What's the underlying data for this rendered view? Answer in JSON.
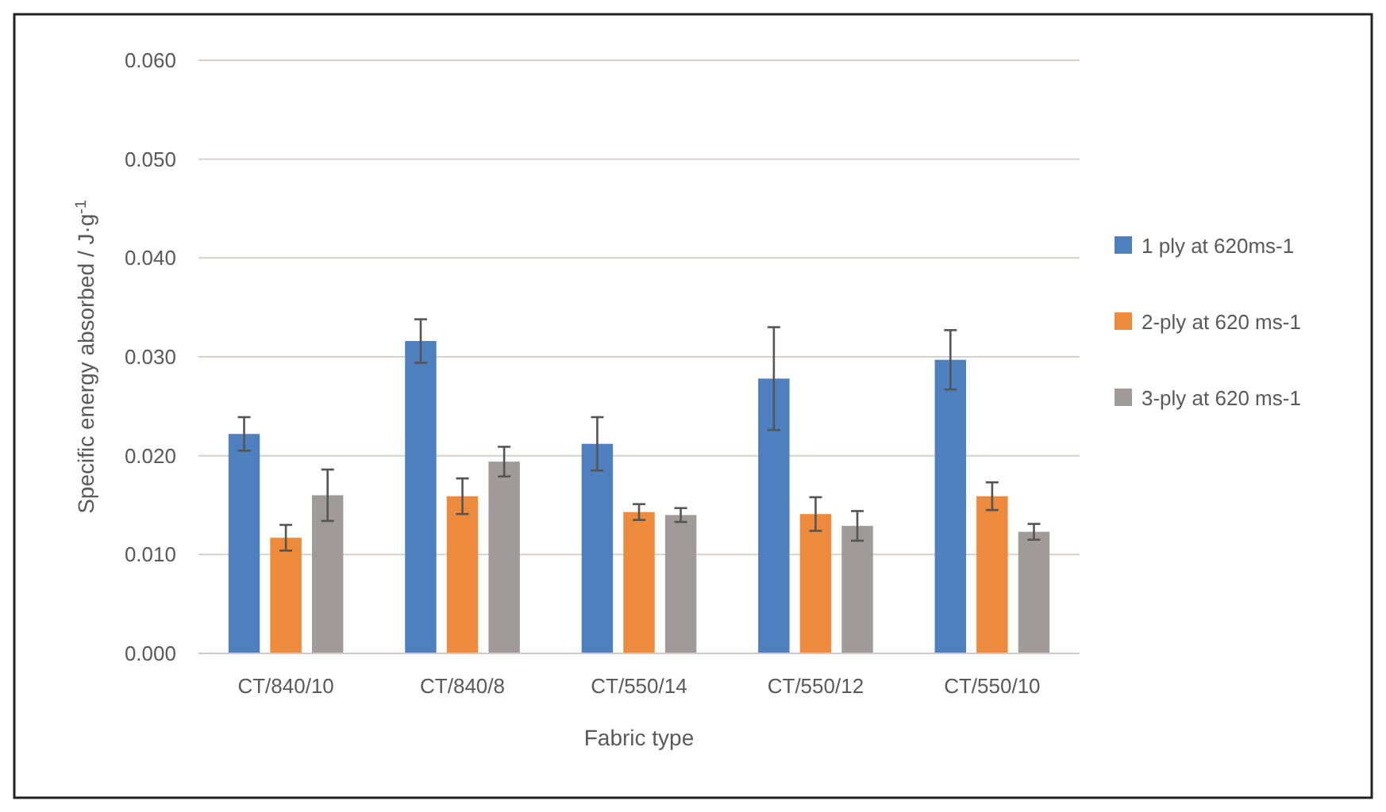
{
  "chart_data": {
    "type": "bar",
    "xlabel": "Fabric type",
    "ylabel": "Specific energy absorbed / J·g$^{-1}$",
    "categories": [
      "CT/840/10",
      "CT/840/8",
      "CT/550/14",
      "CT/550/12",
      "CT/550/10"
    ],
    "series": [
      {
        "name": "1 ply at 620ms-1",
        "color": "#4e7fbf",
        "values": [
          0.0222,
          0.0316,
          0.0212,
          0.0278,
          0.0297
        ],
        "errors": [
          0.0017,
          0.0022,
          0.0027,
          0.0052,
          0.003
        ]
      },
      {
        "name": "2-ply at 620 ms-1",
        "color": "#ed8a3b",
        "values": [
          0.0117,
          0.0159,
          0.0143,
          0.0141,
          0.0159
        ],
        "errors": [
          0.0013,
          0.0018,
          0.0008,
          0.0017,
          0.0014
        ]
      },
      {
        "name": "3-ply at 620 ms-1",
        "color": "#a09a9a",
        "values": [
          0.016,
          0.0194,
          0.014,
          0.0129,
          0.0123
        ],
        "errors": [
          0.0026,
          0.0015,
          0.0007,
          0.0015,
          0.0008
        ]
      }
    ],
    "ylim": [
      0,
      0.06
    ],
    "yticks": [
      {
        "value": 0,
        "label": "0.000"
      },
      {
        "value": 0.01,
        "label": "0.010"
      },
      {
        "value": 0.02,
        "label": "0.020"
      },
      {
        "value": 0.03,
        "label": "0.030"
      },
      {
        "value": 0.04,
        "label": "0.040"
      },
      {
        "value": 0.05,
        "label": "0.050"
      },
      {
        "value": 0.06,
        "label": "0.060"
      }
    ],
    "grid": "y",
    "legend": "right"
  }
}
